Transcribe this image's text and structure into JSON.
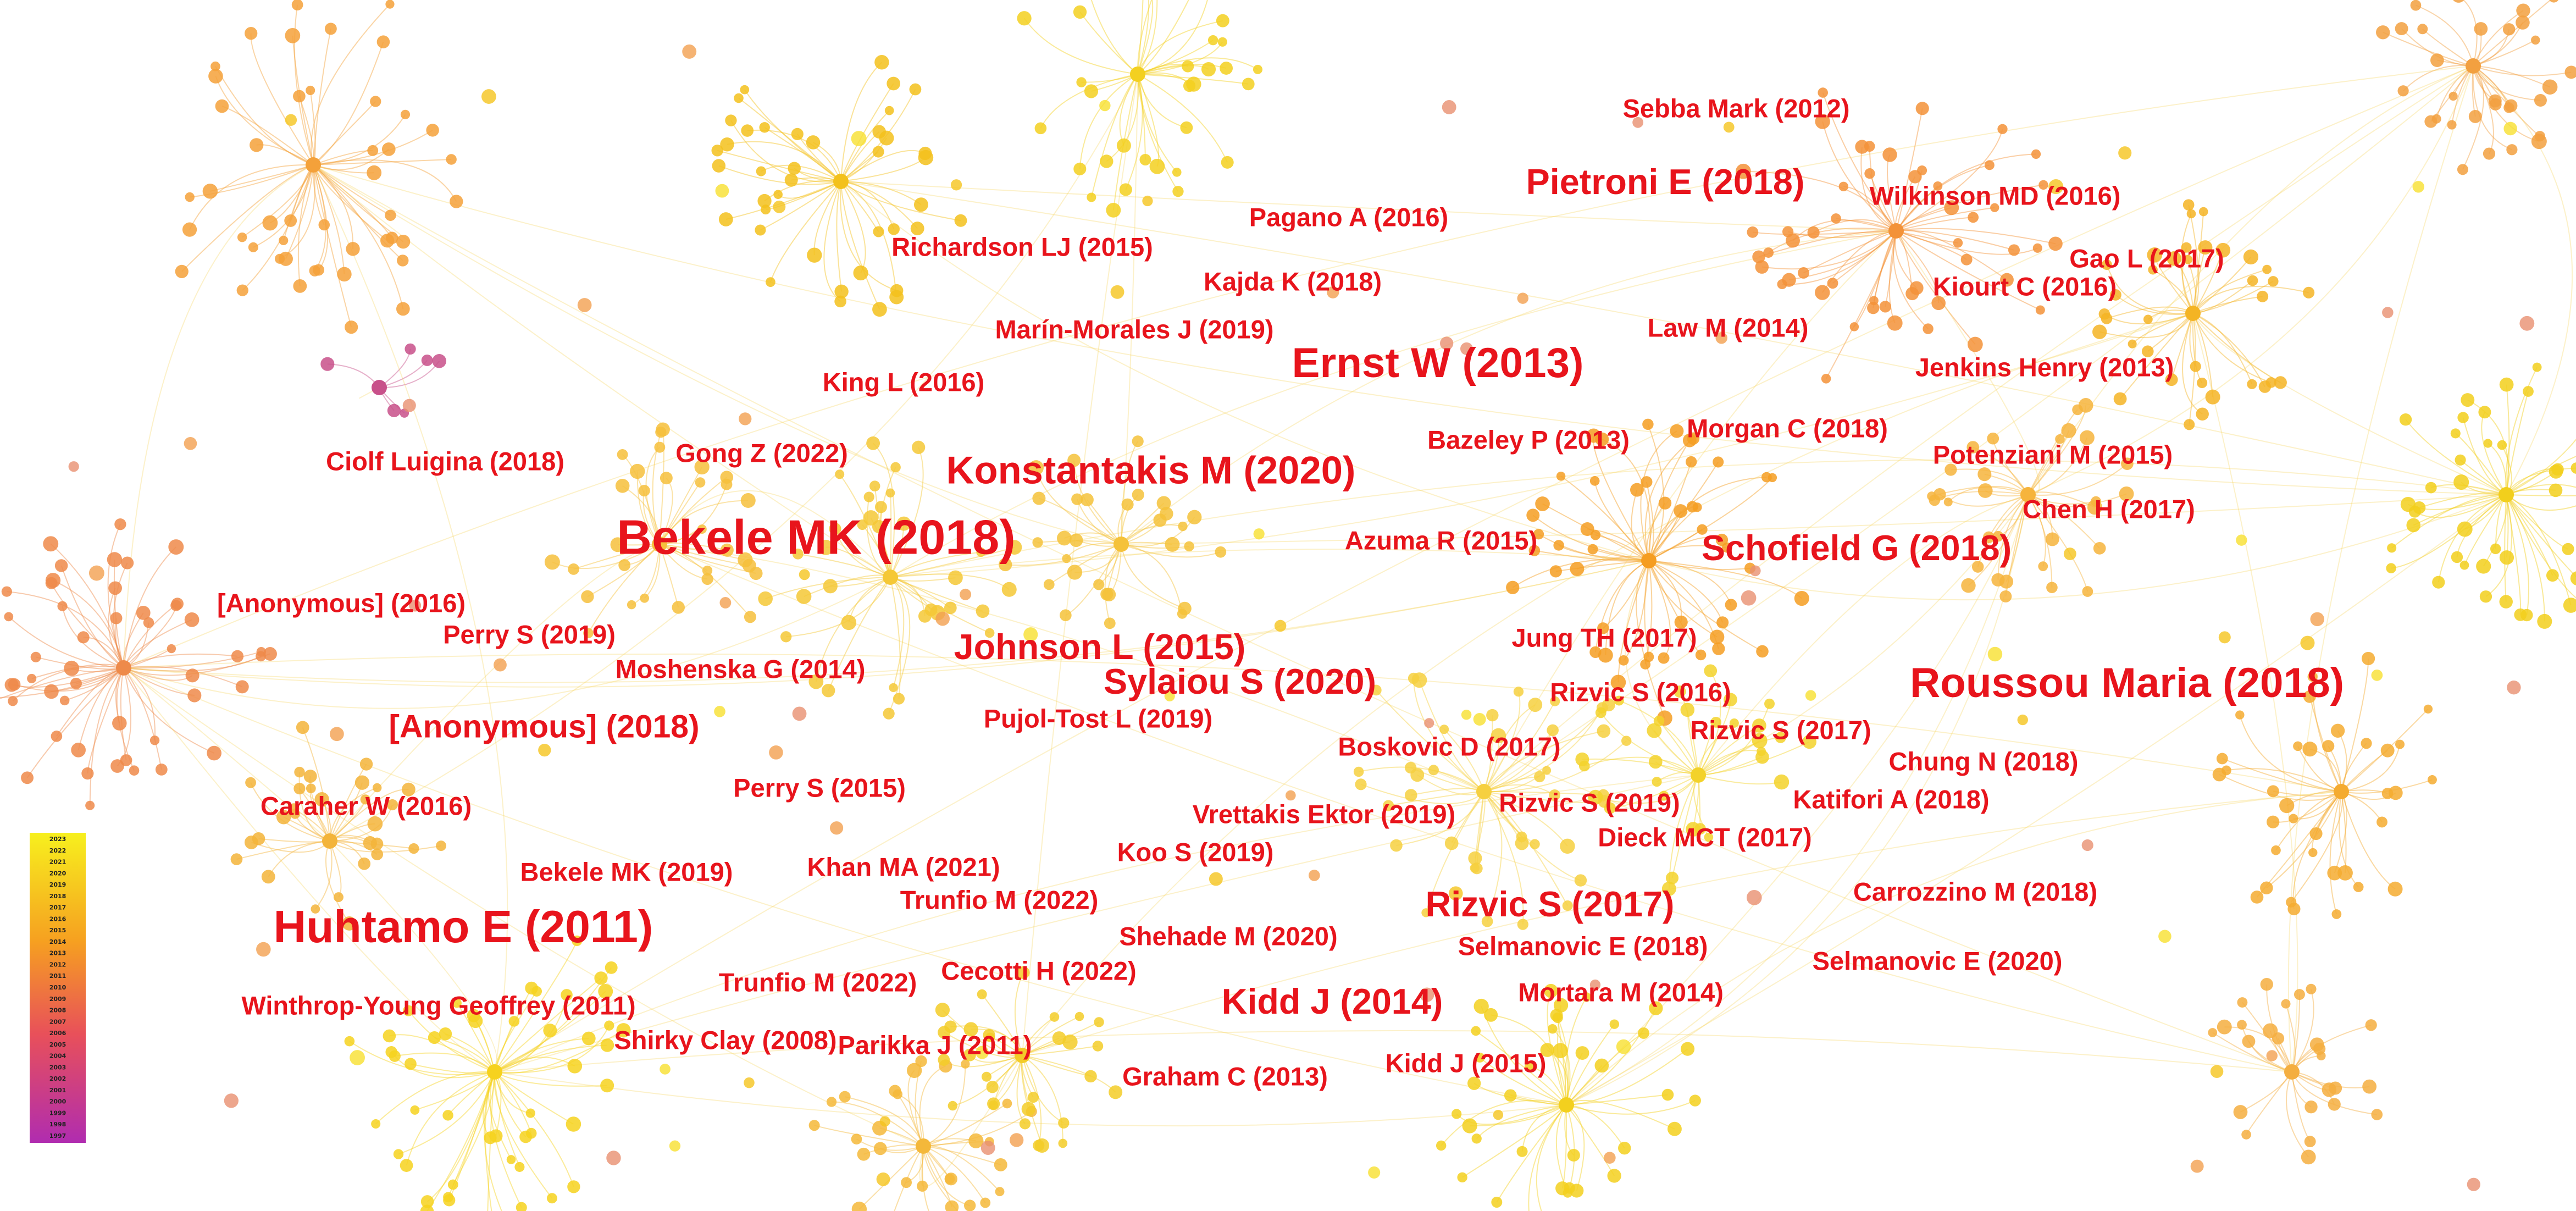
{
  "labels": [
    "Sebba Mark (2012)",
    "Pietroni E (2018)",
    "Wilkinson MD (2016)",
    "Pagano A (2016)",
    "Richardson LJ (2015)",
    "Gao L (2017)",
    "Kajda K (2018)",
    "Kiourt C (2016)",
    "Marín-Morales J (2019)",
    "Law M (2014)",
    "Ernst W (2013)",
    "Jenkins Henry (2013)",
    "King L (2016)",
    "Morgan C (2018)",
    "Bazeley P (2013)",
    "Gong Z (2022)",
    "Potenziani M (2015)",
    "Ciolf Luigina (2018)",
    "Konstantakis M (2020)",
    "Chen H (2017)",
    "Azuma R (2015)",
    "Bekele MK (2018)",
    "Schofield G (2018)",
    "[Anonymous] (2016)",
    "Perry S (2019)",
    "Jung TH (2017)",
    "Johnson L (2015)",
    "Moshenska G (2014)",
    "Sylaiou S (2020)",
    "Roussou Maria (2018)",
    "Rizvic S (2016)",
    "[Anonymous] (2018)",
    "Pujol-Tost L (2019)",
    "Rizvic S (2017)",
    "Boskovic D (2017)",
    "Chung N (2018)",
    "Perry S (2015)",
    "Katifori A (2018)",
    "Caraher W (2016)",
    "Rizvic S (2019)",
    "Vrettakis Ektor (2019)",
    "Dieck MCT (2017)",
    "Koo S (2019)",
    "Bekele MK (2019)",
    "Khan MA (2021)",
    "Trunfio M (2022)",
    "Carrozzino M (2018)",
    "Rizvic S (2017)",
    "Huhtamo E (2011)",
    "Shehade M (2020)",
    "Selmanovic E (2018)",
    "Selmanovic E (2020)",
    "Cecotti H (2022)",
    "Trunfio M (2022)",
    "Winthrop-Young Geoffrey (2011)",
    "Kidd J (2014)",
    "Mortara M (2014)",
    "Shirky Clay (2008)",
    "Parikka J (2011)",
    "Kidd J (2015)",
    "Graham C (2013)"
  ],
  "legend": {
    "years": [
      2023,
      2022,
      2021,
      2020,
      2019,
      2018,
      2017,
      2016,
      2015,
      2014,
      2013,
      2012,
      2011,
      2010,
      2009,
      2008,
      2007,
      2006,
      2005,
      2004,
      2003,
      2002,
      2001,
      2000,
      1999,
      1998,
      1997
    ]
  }
}
